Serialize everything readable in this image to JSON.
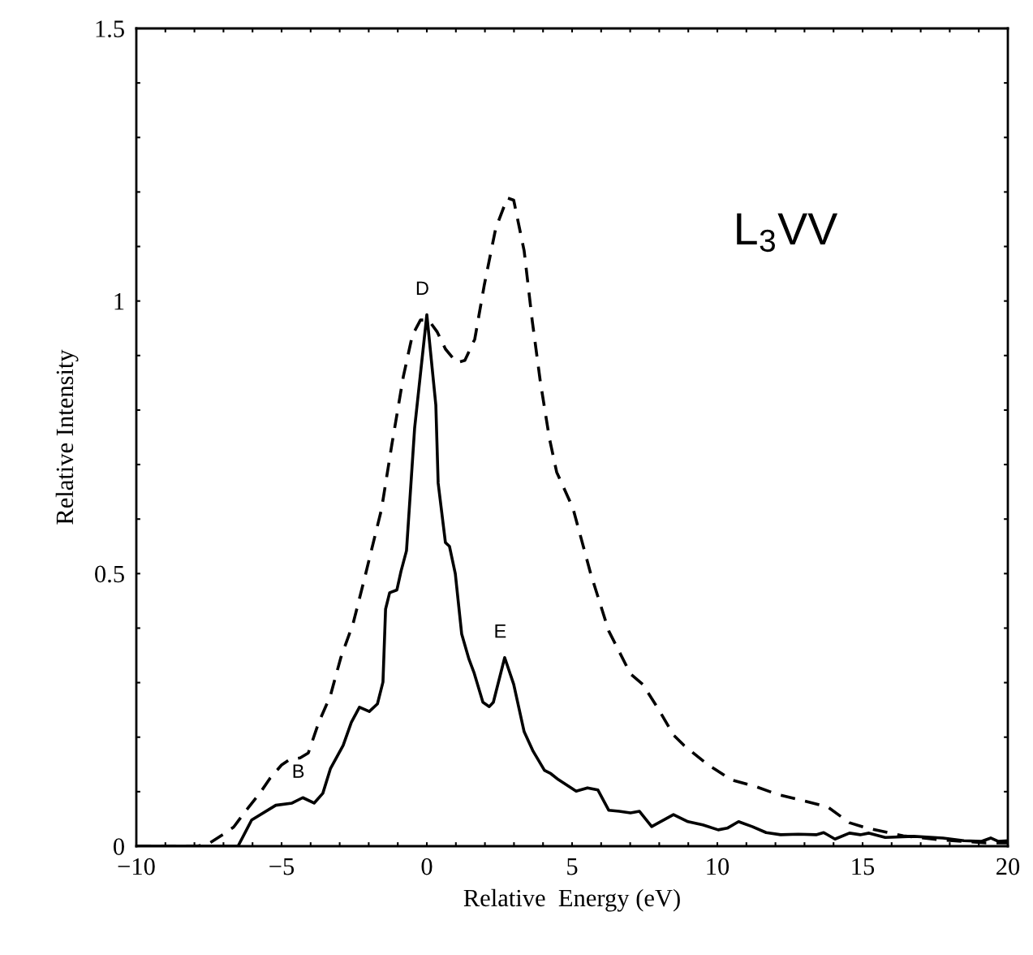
{
  "chart_data": {
    "type": "line",
    "xlabel": "Relative  Energy (eV)",
    "ylabel": "Relative Intensity",
    "xlim": [
      -10,
      20
    ],
    "ylim": [
      0,
      1.5
    ],
    "xticks": [
      {
        "value": -10,
        "label": "−10"
      },
      {
        "value": -9,
        "label": null
      },
      {
        "value": -8,
        "label": null
      },
      {
        "value": -7,
        "label": null
      },
      {
        "value": -6,
        "label": null
      },
      {
        "value": -5,
        "label": "−5"
      },
      {
        "value": -4,
        "label": null
      },
      {
        "value": -3,
        "label": null
      },
      {
        "value": -2,
        "label": null
      },
      {
        "value": -1,
        "label": null
      },
      0,
      {
        "value": 1,
        "label": null
      },
      {
        "value": 2,
        "label": null
      },
      {
        "value": 3,
        "label": null
      },
      {
        "value": 4,
        "label": null
      },
      5,
      {
        "value": 6,
        "label": null
      },
      {
        "value": 7,
        "label": null
      },
      {
        "value": 8,
        "label": null
      },
      {
        "value": 9,
        "label": null
      },
      10,
      {
        "value": 11,
        "label": null
      },
      {
        "value": 12,
        "label": null
      },
      {
        "value": 13,
        "label": null
      },
      {
        "value": 14,
        "label": null
      },
      15,
      {
        "value": 16,
        "label": null
      },
      {
        "value": 17,
        "label": null
      },
      {
        "value": 18,
        "label": null
      },
      {
        "value": 19,
        "label": null
      },
      20
    ],
    "yticks": [
      0,
      {
        "value": 0.1,
        "label": null
      },
      {
        "value": 0.2,
        "label": null
      },
      {
        "value": 0.3,
        "label": null
      },
      {
        "value": 0.4,
        "label": null
      },
      0.5,
      {
        "value": 0.6,
        "label": null
      },
      {
        "value": 0.7,
        "label": null
      },
      {
        "value": 0.8,
        "label": null
      },
      {
        "value": 0.9,
        "label": null
      },
      1,
      {
        "value": 1.1,
        "label": null
      },
      {
        "value": 1.2,
        "label": null
      },
      {
        "value": 1.3,
        "label": null
      },
      {
        "value": 1.4,
        "label": null
      },
      1.5
    ],
    "marker": "none",
    "series": [
      {
        "color": "#000000",
        "line_style": "solid",
        "x": [
          -10,
          -6.5,
          -6.03,
          -5.2,
          -4.64,
          -4.27,
          -3.88,
          -3.58,
          -3.32,
          -2.88,
          -2.6,
          -2.32,
          -1.98,
          -1.7,
          -1.51,
          -1.42,
          -1.28,
          -1.03,
          -0.89,
          -0.7,
          -0.42,
          0.0,
          0.31,
          0.39,
          0.64,
          0.78,
          0.98,
          1.2,
          1.45,
          1.62,
          1.93,
          2.15,
          2.29,
          2.68,
          2.99,
          3.35,
          3.66,
          4.05,
          4.27,
          4.53,
          5.14,
          5.53,
          5.89,
          6.26,
          6.62,
          7.01,
          7.32,
          7.74,
          8.49,
          8.99,
          9.5,
          10.03,
          10.34,
          10.73,
          11.2,
          11.68,
          12.18,
          12.79,
          13.4,
          13.66,
          14.05,
          14.55,
          14.92,
          15.22,
          15.78,
          16.76,
          17.77,
          18.49,
          19.1,
          19.41,
          19.66,
          20
        ],
        "values": [
          0,
          0,
          0.048,
          0.075,
          0.079,
          0.089,
          0.079,
          0.097,
          0.142,
          0.185,
          0.227,
          0.255,
          0.247,
          0.261,
          0.301,
          0.435,
          0.465,
          0.47,
          0.504,
          0.542,
          0.767,
          0.975,
          0.809,
          0.666,
          0.557,
          0.55,
          0.5,
          0.389,
          0.343,
          0.319,
          0.264,
          0.256,
          0.264,
          0.346,
          0.297,
          0.21,
          0.174,
          0.139,
          0.133,
          0.122,
          0.101,
          0.107,
          0.103,
          0.066,
          0.064,
          0.061,
          0.064,
          0.036,
          0.058,
          0.045,
          0.039,
          0.03,
          0.033,
          0.045,
          0.036,
          0.025,
          0.021,
          0.022,
          0.021,
          0.025,
          0.013,
          0.024,
          0.021,
          0.024,
          0.016,
          0.018,
          0.015,
          0.01,
          0.009,
          0.015,
          0.009,
          0.01
        ]
      },
      {
        "color": "#000000",
        "line_style": "dashed",
        "x": [
          -10,
          -7.9,
          -7.5,
          -7.0,
          -6.65,
          -6.23,
          -5.75,
          -5.39,
          -5.0,
          -4.72,
          -4.36,
          -4.08,
          -3.72,
          -3.32,
          -2.96,
          -2.54,
          -2.15,
          -1.56,
          -1.2,
          -0.81,
          -0.5,
          -0.22,
          0.06,
          0.36,
          0.64,
          1.03,
          1.31,
          1.65,
          1.98,
          2.37,
          2.77,
          2.99,
          3.35,
          3.63,
          3.91,
          4.22,
          4.47,
          5.03,
          5.64,
          6.26,
          7.01,
          7.43,
          7.99,
          8.49,
          8.85,
          9.61,
          10.47,
          11.34,
          12.07,
          13.07,
          13.8,
          14.55,
          15.17,
          16.4,
          17.63,
          19.25,
          20
        ],
        "values": [
          0,
          0,
          0.005,
          0.022,
          0.035,
          0.065,
          0.097,
          0.125,
          0.149,
          0.159,
          0.162,
          0.171,
          0.227,
          0.276,
          0.346,
          0.408,
          0.49,
          0.618,
          0.738,
          0.861,
          0.937,
          0.965,
          0.965,
          0.943,
          0.912,
          0.887,
          0.891,
          0.93,
          1.03,
          1.133,
          1.189,
          1.185,
          1.092,
          0.963,
          0.851,
          0.748,
          0.686,
          0.62,
          0.5,
          0.395,
          0.316,
          0.297,
          0.25,
          0.204,
          0.185,
          0.152,
          0.122,
          0.109,
          0.095,
          0.082,
          0.072,
          0.043,
          0.033,
          0.019,
          0.012,
          0.006,
          0.006
        ]
      }
    ],
    "annotations": [
      {
        "text": "B",
        "x": -4.27,
        "y": 0.089
      },
      {
        "text": "D",
        "x": 0.0,
        "y": 0.975
      },
      {
        "text": "E",
        "x": 2.68,
        "y": 0.346
      },
      "L$_{3}$VV"
    ]
  }
}
